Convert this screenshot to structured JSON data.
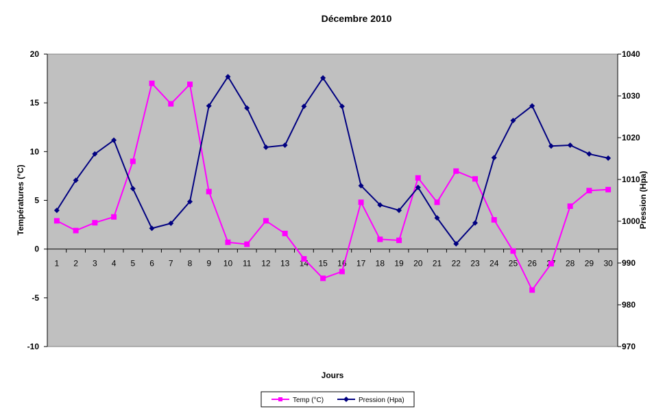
{
  "chart_data": {
    "type": "line",
    "title": "Décembre 2010",
    "xlabel": "Jours",
    "ylabel_left": "Températures (°C)",
    "ylabel_right": "Pression (Hpa)",
    "x": [
      1,
      2,
      3,
      4,
      5,
      6,
      7,
      8,
      9,
      10,
      11,
      12,
      13,
      14,
      15,
      16,
      17,
      18,
      19,
      20,
      21,
      22,
      23,
      24,
      25,
      26,
      27,
      28,
      29,
      30
    ],
    "ylim_left": [
      -10,
      20
    ],
    "yticks_left": [
      -10,
      -5,
      0,
      5,
      10,
      15,
      20
    ],
    "ylim_right": [
      970,
      1040
    ],
    "yticks_right": [
      970,
      980,
      990,
      1000,
      1010,
      1020,
      1030,
      1040
    ],
    "series": [
      {
        "name": "Temp (°C)",
        "axis": "left",
        "color": "#ff00ff",
        "marker": "square",
        "values": [
          2.9,
          1.9,
          2.7,
          3.3,
          9.0,
          17.0,
          14.9,
          16.9,
          5.9,
          0.7,
          0.5,
          2.9,
          1.6,
          -1.0,
          -3.0,
          -2.3,
          4.8,
          1.0,
          0.9,
          7.3,
          4.8,
          8.0,
          7.2,
          3.0,
          -0.2,
          -4.2,
          -1.5,
          4.4,
          6.0,
          6.1
        ]
      },
      {
        "name": "Pression (Hpa)",
        "axis": "right",
        "color": "#000080",
        "marker": "diamond",
        "values": [
          1002.6,
          1009.8,
          1016.1,
          1019.4,
          1007.8,
          998.3,
          999.5,
          1004.7,
          1027.6,
          1034.6,
          1027.1,
          1017.7,
          1018.2,
          1027.5,
          1034.3,
          1027.5,
          1008.5,
          1003.9,
          1002.6,
          1008.1,
          1000.8,
          994.6,
          999.6,
          1015.2,
          1024.1,
          1027.6,
          1018.0,
          1018.2,
          1016.1,
          1015.1
        ]
      }
    ],
    "grid": false,
    "legend_position": "bottom",
    "plot_background": "#c0c0c0"
  }
}
